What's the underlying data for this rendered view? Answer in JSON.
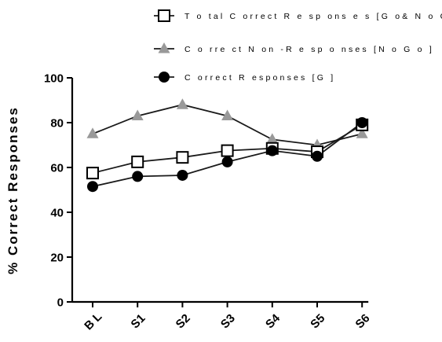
{
  "chart_data": {
    "type": "line",
    "categories": [
      "B L",
      "S1",
      "S2",
      "S3",
      "S4",
      "S5",
      "S6"
    ],
    "ylabel": "% Correct Responses",
    "xlabel": "",
    "ylim": [
      0,
      100
    ],
    "yticks": [
      0,
      20,
      40,
      60,
      80,
      100
    ],
    "grid": false,
    "legend_position": "top",
    "series": [
      {
        "name": "T o tal C orrect R e sp ons e s [G o& N o G o ]",
        "values": [
          57.5,
          62.5,
          64.5,
          67.5,
          68.5,
          67,
          79
        ],
        "marker": "square-open",
        "color": "#000000"
      },
      {
        "name": "C o rre ct N on -R e sp o nses [N o G o ]",
        "values": [
          75,
          83,
          88,
          83,
          72.5,
          70,
          75
        ],
        "marker": "triangle",
        "color": "#999999"
      },
      {
        "name": "C orrect R esponses [G ]",
        "values": [
          51.5,
          56,
          56.5,
          62.5,
          67.5,
          65,
          80
        ],
        "marker": "circle-filled",
        "color": "#000000"
      }
    ]
  }
}
